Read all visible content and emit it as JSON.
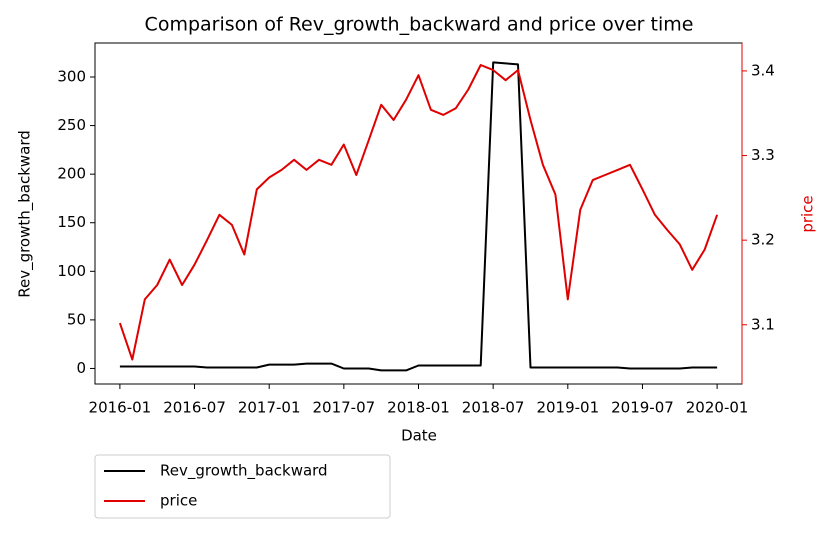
{
  "chart_data": {
    "type": "line",
    "title": "Comparison of Rev_growth_backward and price over time",
    "x_label": "Date",
    "y_label": "Rev_growth_backward",
    "y2_label": "price",
    "x": [
      "2016-01",
      "2016-02",
      "2016-03",
      "2016-04",
      "2016-05",
      "2016-06",
      "2016-07",
      "2016-08",
      "2016-09",
      "2016-10",
      "2016-11",
      "2016-12",
      "2017-01",
      "2017-02",
      "2017-03",
      "2017-04",
      "2017-05",
      "2017-06",
      "2017-07",
      "2017-08",
      "2017-09",
      "2017-10",
      "2017-11",
      "2017-12",
      "2018-01",
      "2018-02",
      "2018-03",
      "2018-04",
      "2018-05",
      "2018-06",
      "2018-07",
      "2018-08",
      "2018-09",
      "2018-10",
      "2018-11",
      "2018-12",
      "2019-01",
      "2019-02",
      "2019-03",
      "2019-04",
      "2019-05",
      "2019-06",
      "2019-07",
      "2019-08",
      "2019-09",
      "2019-10",
      "2019-11",
      "2019-12",
      "2020-01"
    ],
    "series": [
      {
        "name": "Rev_growth_backward",
        "color": "#000000",
        "axis": "y",
        "values": [
          2,
          2,
          2,
          2,
          2,
          2,
          2,
          1,
          1,
          1,
          1,
          1,
          4,
          4,
          4,
          5,
          5,
          5,
          0,
          0,
          0,
          -2,
          -2,
          -2,
          3,
          3,
          3,
          3,
          3,
          3,
          315,
          314,
          313,
          1,
          1,
          1,
          1,
          1,
          1,
          1,
          1,
          0,
          0,
          0,
          0,
          0,
          1,
          1,
          1
        ]
      },
      {
        "name": "price",
        "color": "#e00000",
        "axis": "y2",
        "values": [
          3.102,
          3.059,
          3.13,
          3.147,
          3.177,
          3.147,
          3.171,
          3.2,
          3.23,
          3.218,
          3.183,
          3.26,
          3.274,
          3.283,
          3.295,
          3.283,
          3.295,
          3.289,
          3.313,
          3.277,
          3.318,
          3.36,
          3.342,
          3.366,
          3.395,
          3.354,
          3.348,
          3.356,
          3.378,
          3.407,
          3.401,
          3.389,
          3.401,
          3.342,
          3.289,
          3.254,
          3.13,
          3.236,
          3.271,
          3.277,
          3.283,
          3.289,
          3.26,
          3.23,
          3.212,
          3.195,
          3.165,
          3.189,
          3.23
        ]
      }
    ],
    "xlim": [
      "2015-11",
      "2020-03"
    ],
    "xticks": [
      "2016-01",
      "2016-07",
      "2017-01",
      "2017-07",
      "2018-01",
      "2018-07",
      "2019-01",
      "2019-07",
      "2020-01"
    ],
    "ylim": [
      -16,
      335
    ],
    "yticks": [
      0,
      50,
      100,
      150,
      200,
      250,
      300
    ],
    "y2lim": [
      3.03,
      3.433
    ],
    "y2ticks": [
      3.1,
      3.2,
      3.3,
      3.4
    ],
    "y2_color": "#e00000",
    "legend": "below"
  }
}
